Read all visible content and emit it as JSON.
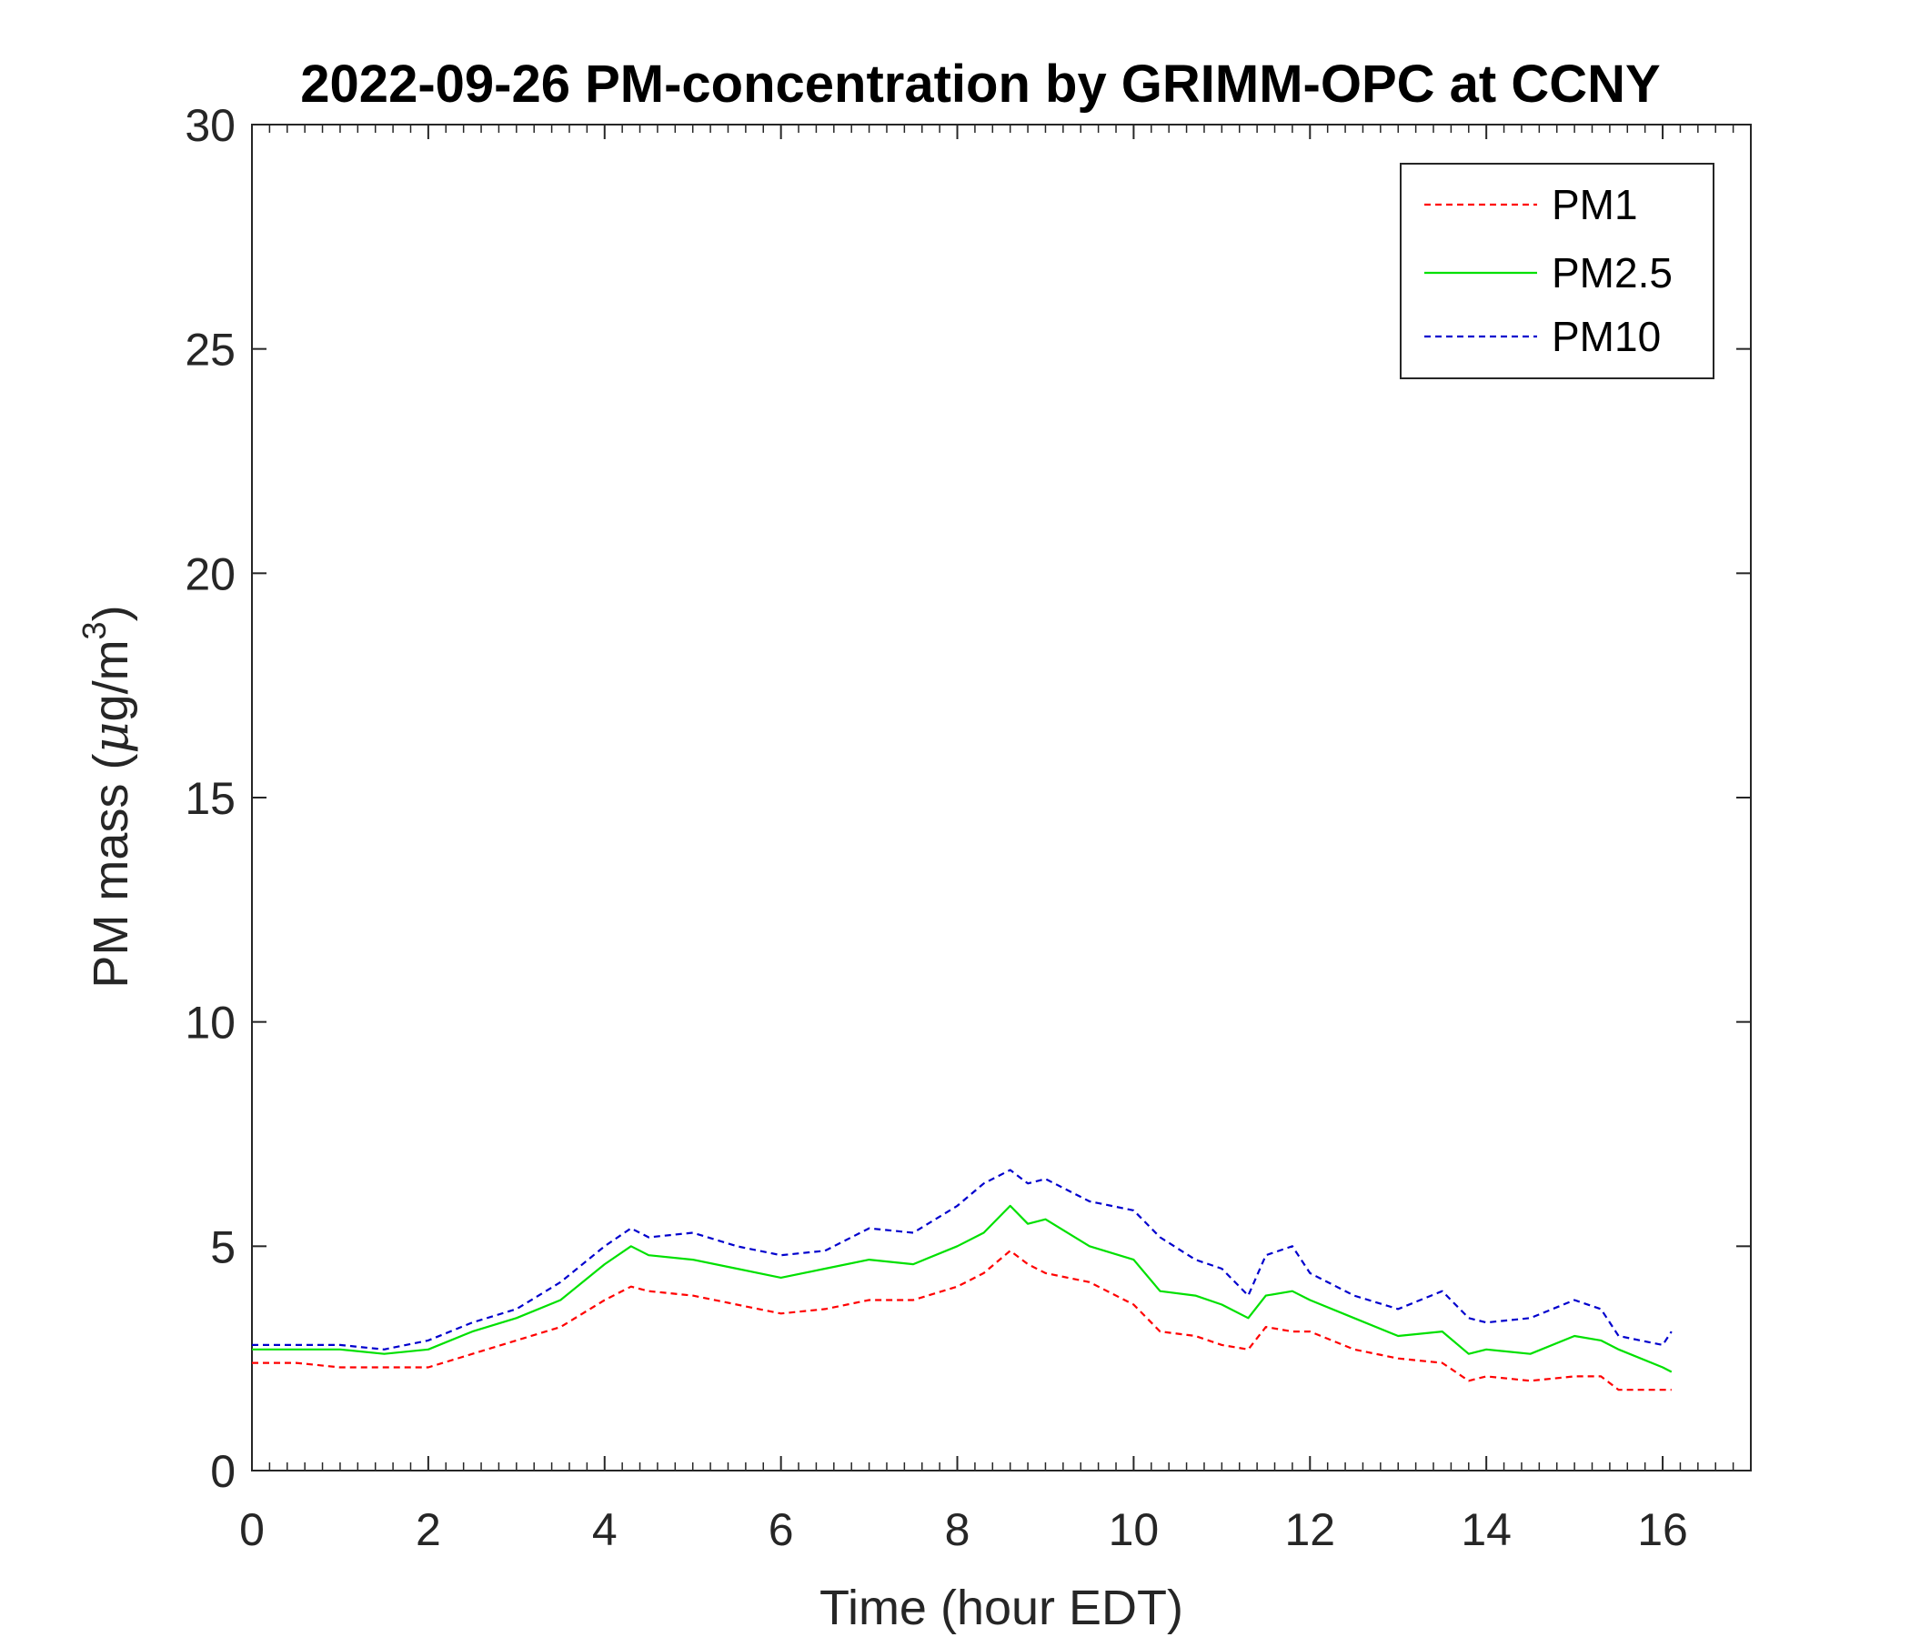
{
  "chart_data": {
    "type": "line",
    "title": "2022-09-26 PM-concentration by GRIMM-OPC at CCNY",
    "xlabel": "Time (hour EDT)",
    "ylabel": "PM mass (",
    "ylabel_unit_symbol": "μ",
    "ylabel_unit_rest": "g/m",
    "ylabel_unit_superscript": "3",
    "ylabel_unit_close": ")",
    "xlim": [
      0,
      17
    ],
    "ylim": [
      0,
      30
    ],
    "xticks": [
      "0",
      "2",
      "4",
      "6",
      "8",
      "10",
      "12",
      "14",
      "16"
    ],
    "yticks": [
      "0",
      "5",
      "10",
      "15",
      "20",
      "25",
      "30"
    ],
    "legend_position": "top-right",
    "grid": false,
    "series": [
      {
        "name": "PM1",
        "color": "#ff0000",
        "style": "dashed",
        "x": [
          0,
          0.5,
          1,
          1.5,
          2,
          2.5,
          3,
          3.5,
          4,
          4.3,
          4.5,
          5,
          5.5,
          6,
          6.5,
          7,
          7.5,
          8,
          8.3,
          8.6,
          8.8,
          9,
          9.5,
          10,
          10.3,
          10.7,
          11,
          11.3,
          11.5,
          11.8,
          12,
          12.5,
          13,
          13.5,
          13.8,
          14,
          14.5,
          15,
          15.3,
          15.5,
          16,
          16.1
        ],
        "y": [
          2.4,
          2.4,
          2.3,
          2.3,
          2.3,
          2.6,
          2.9,
          3.2,
          3.8,
          4.1,
          4.0,
          3.9,
          3.7,
          3.5,
          3.6,
          3.8,
          3.8,
          4.1,
          4.4,
          4.9,
          4.6,
          4.4,
          4.2,
          3.7,
          3.1,
          3.0,
          2.8,
          2.7,
          3.2,
          3.1,
          3.1,
          2.7,
          2.5,
          2.4,
          2.0,
          2.1,
          2.0,
          2.1,
          2.1,
          1.8,
          1.8,
          1.8
        ]
      },
      {
        "name": "PM2.5",
        "color": "#00e000",
        "style": "solid",
        "x": [
          0,
          0.5,
          1,
          1.5,
          2,
          2.5,
          3,
          3.5,
          4,
          4.3,
          4.5,
          5,
          5.5,
          6,
          6.5,
          7,
          7.5,
          8,
          8.3,
          8.6,
          8.8,
          9,
          9.5,
          10,
          10.3,
          10.7,
          11,
          11.3,
          11.5,
          11.8,
          12,
          12.5,
          13,
          13.5,
          13.8,
          14,
          14.5,
          15,
          15.3,
          15.5,
          16,
          16.1
        ],
        "y": [
          2.7,
          2.7,
          2.7,
          2.6,
          2.7,
          3.1,
          3.4,
          3.8,
          4.6,
          5.0,
          4.8,
          4.7,
          4.5,
          4.3,
          4.5,
          4.7,
          4.6,
          5.0,
          5.3,
          5.9,
          5.5,
          5.6,
          5.0,
          4.7,
          4.0,
          3.9,
          3.7,
          3.4,
          3.9,
          4.0,
          3.8,
          3.4,
          3.0,
          3.1,
          2.6,
          2.7,
          2.6,
          3.0,
          2.9,
          2.7,
          2.3,
          2.2
        ]
      },
      {
        "name": "PM10",
        "color": "#0000cd",
        "style": "dashed",
        "x": [
          0,
          0.5,
          1,
          1.5,
          2,
          2.5,
          3,
          3.5,
          4,
          4.3,
          4.5,
          5,
          5.5,
          6,
          6.5,
          7,
          7.5,
          8,
          8.3,
          8.6,
          8.8,
          9,
          9.5,
          10,
          10.3,
          10.7,
          11,
          11.3,
          11.5,
          11.8,
          12,
          12.5,
          13,
          13.5,
          13.8,
          14,
          14.5,
          15,
          15.3,
          15.5,
          16,
          16.1
        ],
        "y": [
          2.8,
          2.8,
          2.8,
          2.7,
          2.9,
          3.3,
          3.6,
          4.2,
          5.0,
          5.4,
          5.2,
          5.3,
          5.0,
          4.8,
          4.9,
          5.4,
          5.3,
          5.9,
          6.4,
          6.7,
          6.4,
          6.5,
          6.0,
          5.8,
          5.2,
          4.7,
          4.5,
          3.9,
          4.8,
          5.0,
          4.4,
          3.9,
          3.6,
          4.0,
          3.4,
          3.3,
          3.4,
          3.8,
          3.6,
          3.0,
          2.8,
          3.1
        ]
      }
    ]
  }
}
